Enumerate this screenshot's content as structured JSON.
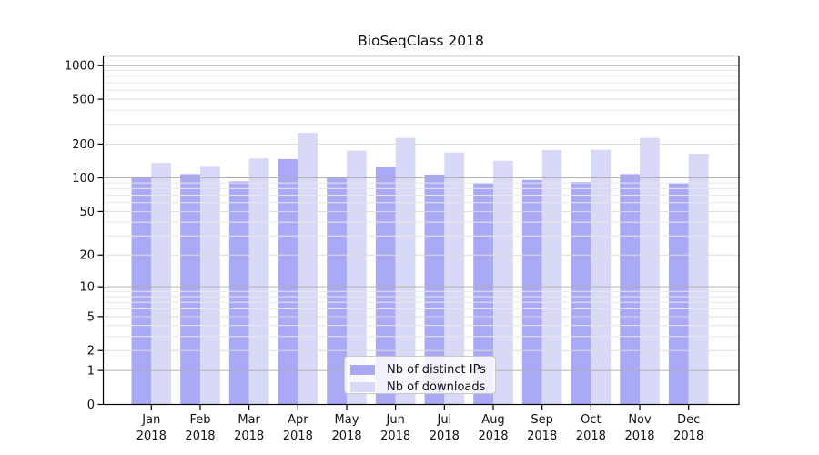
{
  "chart_data": {
    "type": "bar",
    "title": "BioSeqClass 2018",
    "categories": [
      "Jan",
      "Feb",
      "Mar",
      "Apr",
      "May",
      "Jun",
      "Jul",
      "Aug",
      "Sep",
      "Oct",
      "Nov",
      "Dec"
    ],
    "x_year_label": "2018",
    "series": [
      {
        "name": "Nb of distinct IPs",
        "color": "#a9a9f6",
        "values": [
          101,
          108,
          93,
          147,
          99,
          126,
          107,
          89,
          96,
          92,
          108,
          89
        ]
      },
      {
        "name": "Nb of downloads",
        "color": "#d8d8f7",
        "values": [
          136,
          128,
          149,
          252,
          175,
          227,
          168,
          142,
          177,
          178,
          227,
          164
        ]
      }
    ],
    "y_ticks": [
      0,
      1,
      2,
      5,
      10,
      20,
      50,
      100,
      200,
      500,
      1000
    ],
    "ylim": [
      0,
      1210
    ],
    "scale": "log10(1+y)",
    "grid": true,
    "legend_position": "bottom-center",
    "colors": {
      "axis": "#000000",
      "grid_decade": "#b0b0b0",
      "grid_labeled": "#dcdcdc",
      "grid_minor": "#e7e7e7",
      "text": "#111111"
    }
  }
}
